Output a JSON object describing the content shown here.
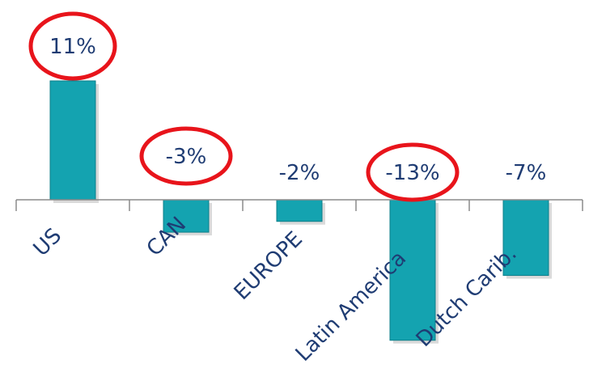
{
  "chart_data": {
    "type": "bar",
    "categories": [
      "US",
      "CAN",
      "EUROPE",
      "Latin America",
      "Dutch Carib."
    ],
    "values": [
      11,
      -3,
      -2,
      -13,
      -7
    ],
    "data_labels": [
      "11%",
      "-3%",
      "-2%",
      "-13%",
      "-7%"
    ],
    "highlighted": [
      "US",
      "CAN",
      "Latin America"
    ],
    "title": "",
    "xlabel": "",
    "ylabel": "",
    "ylim": [
      -13.8,
      11
    ],
    "grid": false,
    "legend": "none",
    "colors": {
      "bar": "#14a3b0",
      "bar_edge": "#0e7f8a",
      "label_text": "#1f3c73",
      "highlight_ring": "#e8141b",
      "axis": "#8a8a8a"
    }
  }
}
